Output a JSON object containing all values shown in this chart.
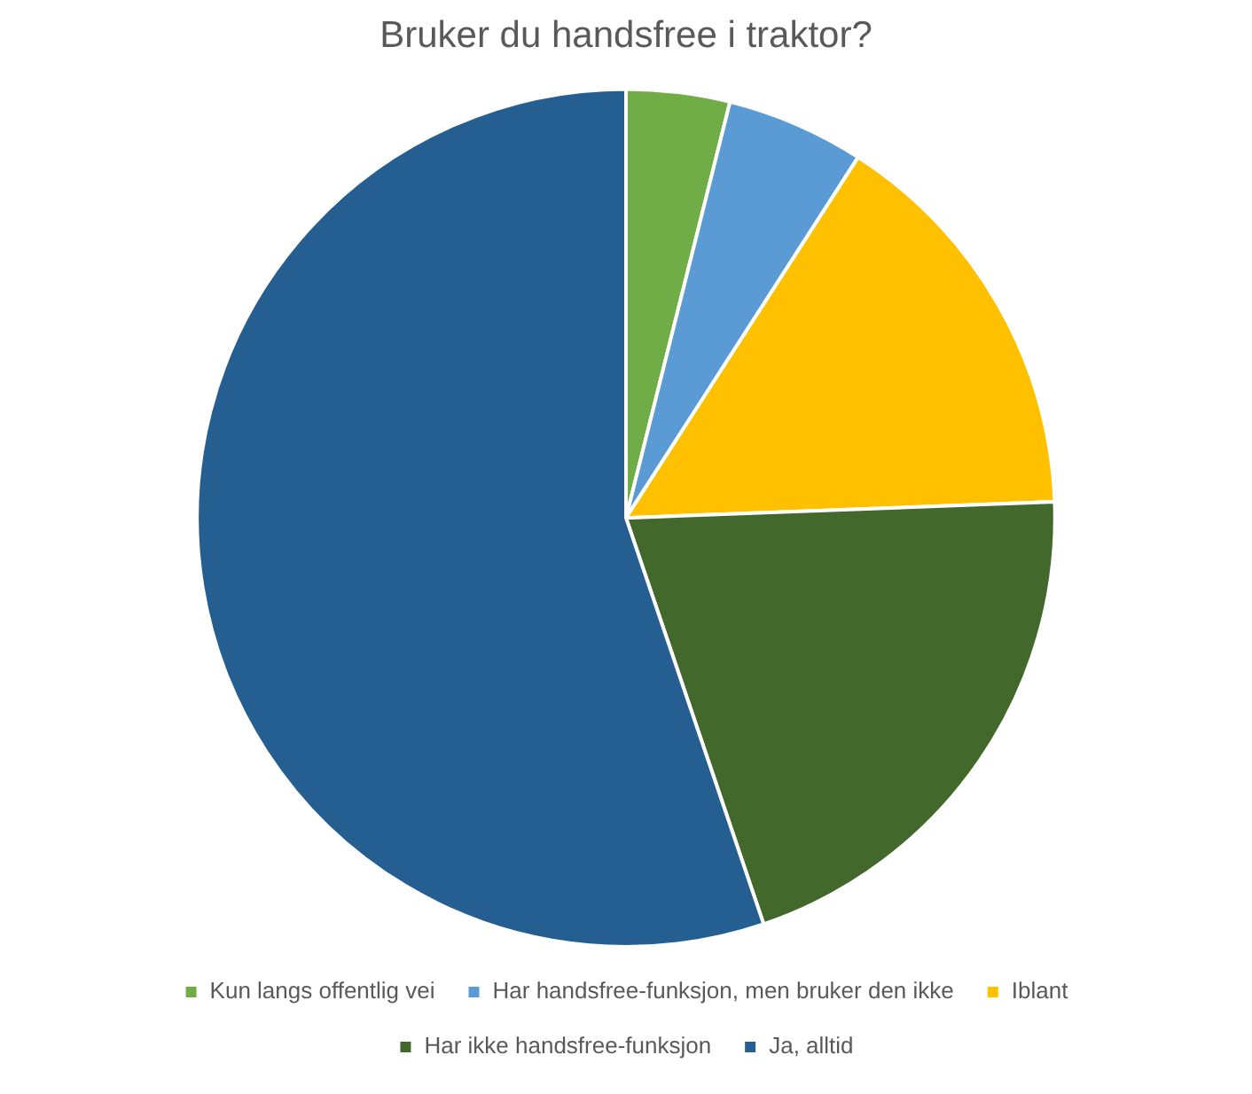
{
  "chart_data": {
    "type": "pie",
    "title": "Bruker du handsfree i traktor?",
    "categories": [
      "Kun langs offentlig vei",
      "Har handsfree-funksjon, men bruker den ikke",
      "Iblant",
      "Har ikke handsfree-funksjon",
      "Ja, alltid"
    ],
    "values": [
      3.9,
      5.2,
      15.3,
      20.4,
      55.2
    ],
    "colors": [
      "#70ad47",
      "#5b9bd5",
      "#ffc000",
      "#43682b",
      "#255e91"
    ],
    "legend": "bottom"
  }
}
